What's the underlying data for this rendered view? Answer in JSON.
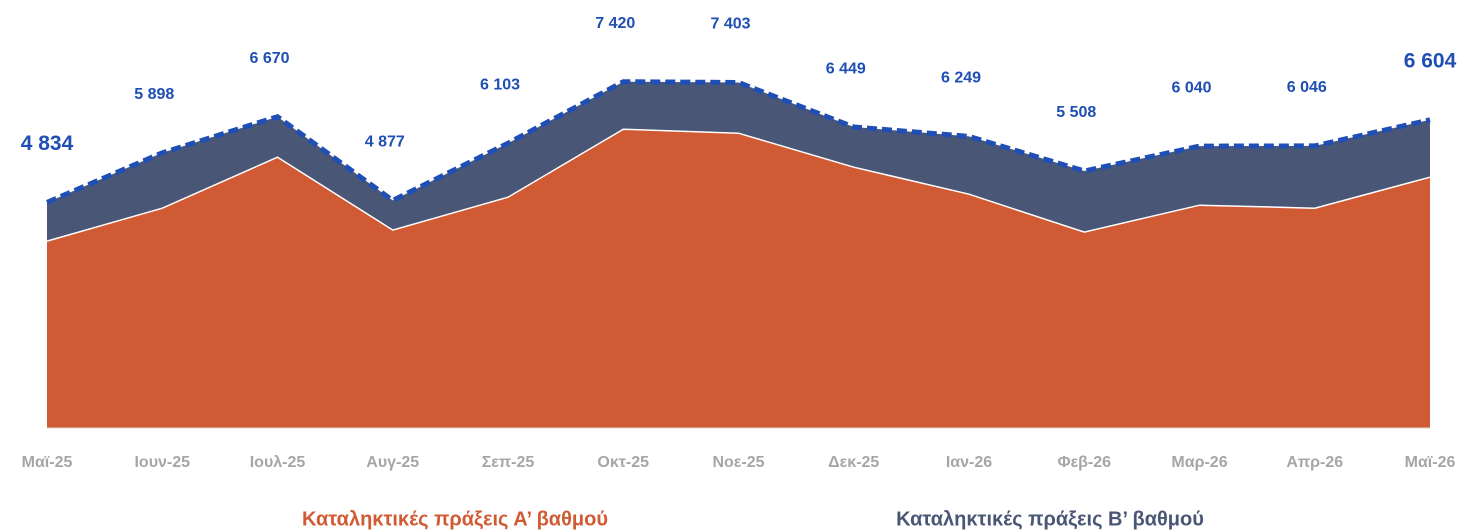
{
  "chart_data": {
    "type": "stacked_area",
    "categories": [
      "Μαϊ-25",
      "Ιουν-25",
      "Ιουλ-25",
      "Αυγ-25",
      "Σεπ-25",
      "Οκτ-25",
      "Νοε-25",
      "Δεκ-25",
      "Ιαν-26",
      "Φεβ-26",
      "Μαρ-26",
      "Απρ-26",
      "Μαϊ-26"
    ],
    "series": [
      {
        "name": "Καταληκτικές πράξεις Α’ βαθμού",
        "color": "#d05a33",
        "values": [
          4004,
          4711,
          5803,
          4240,
          4946,
          6403,
          6317,
          5589,
          5011,
          4197,
          4775,
          4711,
          5375
        ]
      },
      {
        "name": "Καταληκτικές πράξεις Β’ βαθμού",
        "color": "#4a5675",
        "values": [
          830,
          1187,
          867,
          637,
          1157,
          1017,
          1086,
          860,
          1238,
          1311,
          1265,
          1335,
          1229
        ]
      }
    ],
    "total": {
      "color": "#1f4fb4",
      "values": [
        4834,
        5898,
        6670,
        4877,
        6103,
        7420,
        7403,
        6449,
        6249,
        5508,
        6040,
        6046,
        6604
      ],
      "value_labels": [
        "4 834",
        "5 898",
        "6 670",
        "4 877",
        "6 103",
        "7 420",
        "7 403",
        "6 449",
        "6 249",
        "5 508",
        "6 040",
        "6 046",
        "6 604"
      ]
    },
    "ylim": [
      0,
      9000
    ]
  }
}
